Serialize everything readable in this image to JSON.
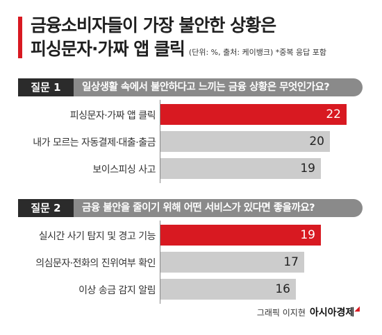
{
  "title_line1": "금융소비자들이 가장 불안한 상황은",
  "title_line2": "피싱문자·가짜 앱 클릭",
  "title_note": "(단위: %, 출처: 케이뱅크) *중복 응답 포함",
  "credit_text": "그래픽 이지현",
  "brand_text": "아시아경제",
  "colors": {
    "accent": "#d81921",
    "bar_gray": "#cccccc",
    "header_gray": "#8a8a8a",
    "tag_dark": "#2b2b2b"
  },
  "chart_data": [
    {
      "type": "bar",
      "orientation": "horizontal",
      "tag": "질문 1",
      "question": "일상생활 속에서 불안하다고 느끼는 금융 상황은 무엇인가요?",
      "categories": [
        "피싱문자·가짜 앱 클릭",
        "내가 모르는 자동결제·대출·출금",
        "보이스피싱 사고"
      ],
      "values": [
        22,
        20,
        19
      ],
      "highlight_index": 0
    },
    {
      "type": "bar",
      "orientation": "horizontal",
      "tag": "질문 2",
      "question": "금융 불안을 줄이기 위해 어떤 서비스가 있다면 좋을까요?",
      "categories": [
        "실시간 사기 탐지 및 경고 기능",
        "의심문자·전화의 진위여부 확인",
        "이상 송금 감지 알림"
      ],
      "values": [
        19,
        17,
        16
      ],
      "highlight_index": 0
    }
  ]
}
